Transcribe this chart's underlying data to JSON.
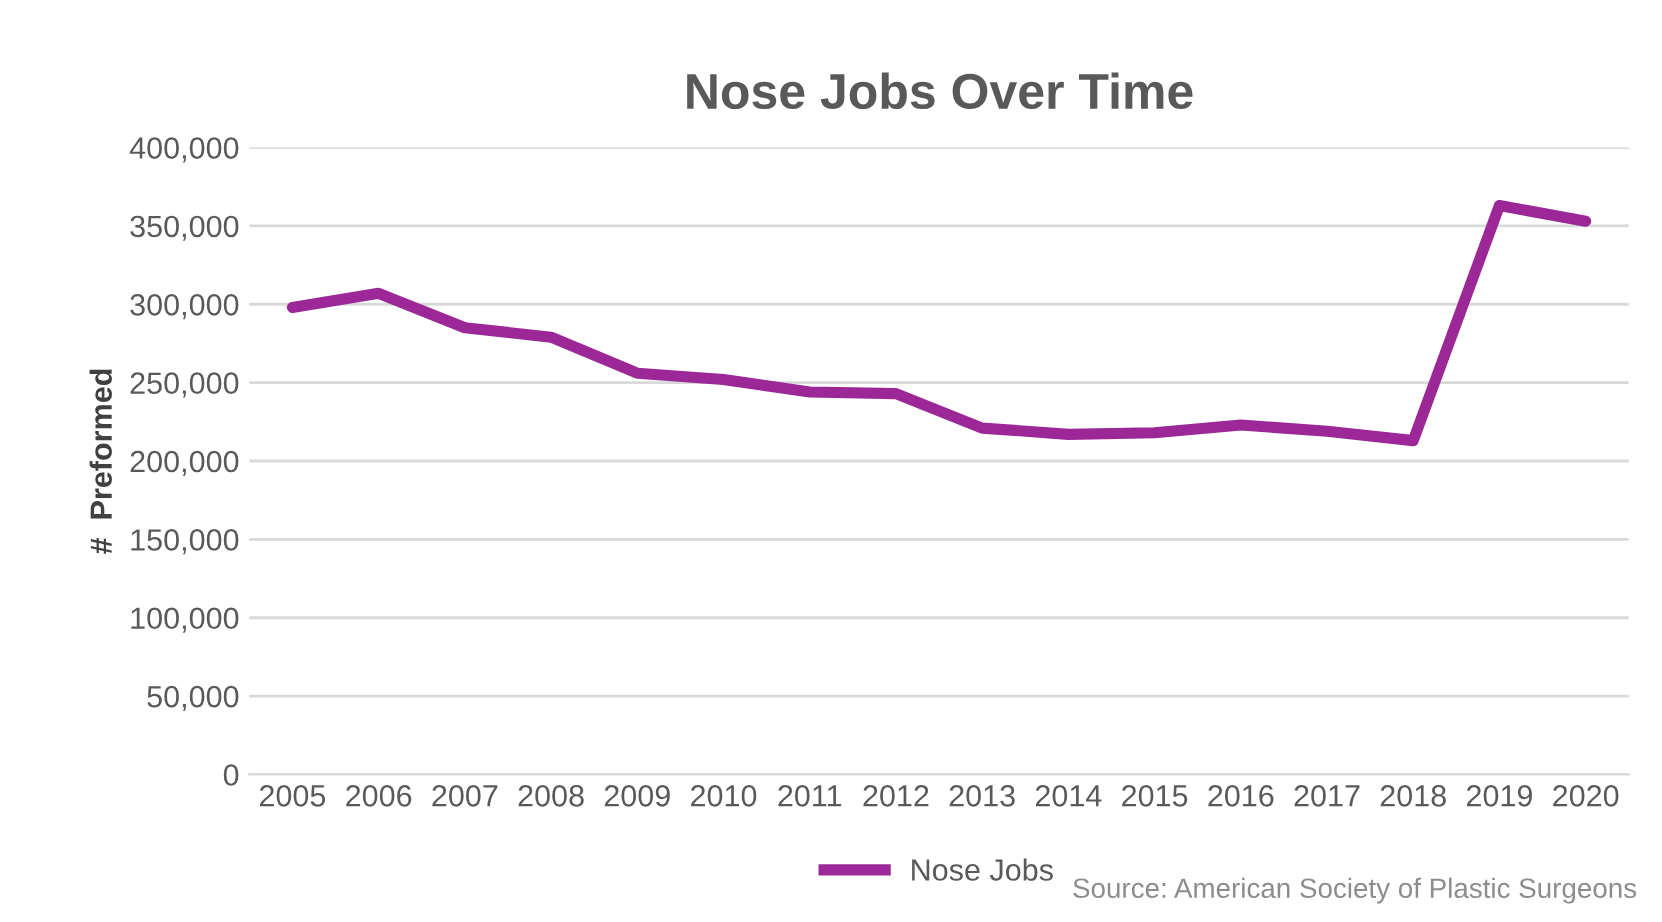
{
  "chart_data": {
    "type": "line",
    "title": "Nose Jobs Over Time",
    "ylabel": "#  Preformed",
    "categories": [
      "2005",
      "2006",
      "2007",
      "2008",
      "2009",
      "2010",
      "2011",
      "2012",
      "2013",
      "2014",
      "2015",
      "2016",
      "2017",
      "2018",
      "2019",
      "2020"
    ],
    "series": [
      {
        "name": "Nose Jobs",
        "color": "#9b2896",
        "values": [
          298000,
          307000,
          285000,
          279000,
          256000,
          252000,
          244000,
          243000,
          221000,
          217000,
          218000,
          223000,
          219000,
          213000,
          363000,
          353000
        ]
      }
    ],
    "ylim": [
      0,
      400000
    ],
    "yticks": [
      {
        "value": 0,
        "label": "0"
      },
      {
        "value": 50000,
        "label": "50,000"
      },
      {
        "value": 100000,
        "label": "100,000"
      },
      {
        "value": 150000,
        "label": "150,000"
      },
      {
        "value": 200000,
        "label": "200,000"
      },
      {
        "value": 250000,
        "label": "250,000"
      },
      {
        "value": 300000,
        "label": "300,000"
      },
      {
        "value": 350000,
        "label": "350,000"
      },
      {
        "value": 400000,
        "label": "400,000"
      }
    ],
    "grid": "y",
    "legend": "bottom",
    "marker": "none",
    "line_style": "solid",
    "annotations": [
      "Source: American Society of Plastic Surgeons"
    ]
  }
}
